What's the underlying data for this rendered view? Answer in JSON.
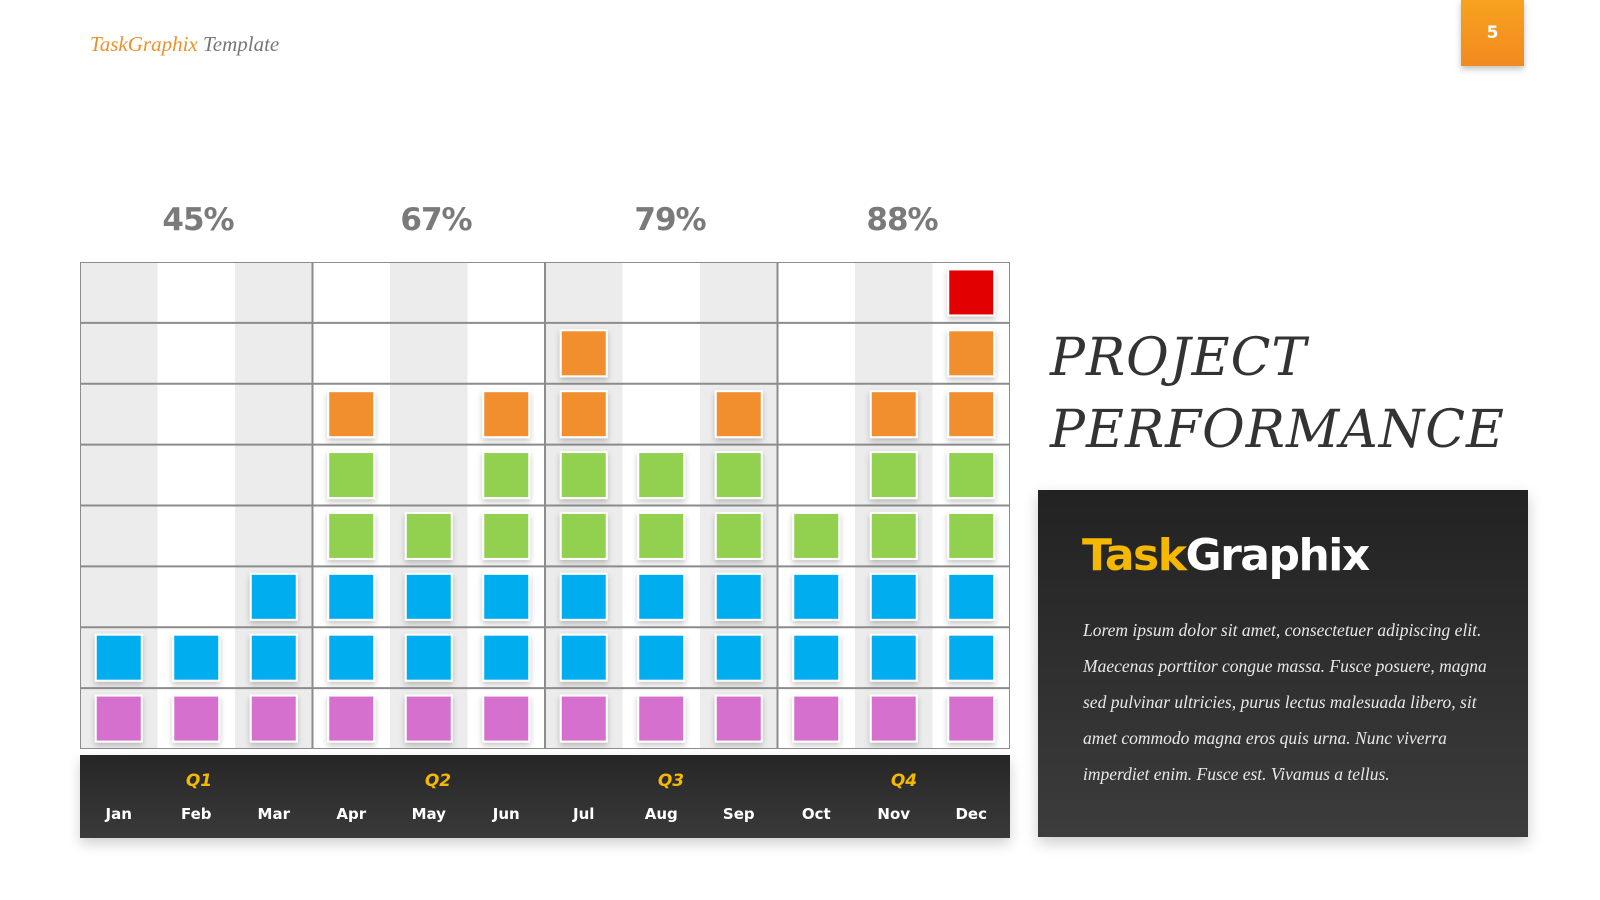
{
  "header": {
    "brand_primary": "TaskGraphix",
    "brand_secondary": " Template",
    "page_number": "5"
  },
  "title_lines": [
    "PROJECT",
    "PERFORMANCE"
  ],
  "info_box": {
    "title_part1": "Task",
    "title_part2": "Graphix",
    "body": "Lorem ipsum dolor sit amet, consectetuer adipiscing elit. Maecenas porttitor congue massa. Fusce posuere, magna sed pulvinar ultricies, purus lectus malesuada libero, sit amet commodo magna eros quis urna. Nunc viverra imperdiet enim. Fusce est. Vivamus a tellus."
  },
  "chart_data": {
    "type": "bar",
    "categories": [
      "Jan",
      "Feb",
      "Mar",
      "Apr",
      "May",
      "Jun",
      "Jul",
      "Aug",
      "Sep",
      "Oct",
      "Nov",
      "Dec"
    ],
    "values": [
      2,
      2,
      3,
      6,
      4,
      6,
      7,
      5,
      6,
      4,
      6,
      8
    ],
    "ylim": [
      0,
      8
    ],
    "quarters": [
      {
        "label": "Q1",
        "percent": "45%",
        "months": [
          "Jan",
          "Feb",
          "Mar"
        ]
      },
      {
        "label": "Q2",
        "percent": "67%",
        "months": [
          "Apr",
          "May",
          "Jun"
        ]
      },
      {
        "label": "Q3",
        "percent": "79%",
        "months": [
          "Jul",
          "Aug",
          "Sep"
        ]
      },
      {
        "label": "Q4",
        "percent": "88%",
        "months": [
          "Oct",
          "Nov",
          "Dec"
        ]
      }
    ],
    "level_colors": [
      "#d56fcf",
      "#00aeef",
      "#00aeef",
      "#92d050",
      "#92d050",
      "#f18f2f",
      "#f18f2f",
      "#e30000"
    ]
  }
}
